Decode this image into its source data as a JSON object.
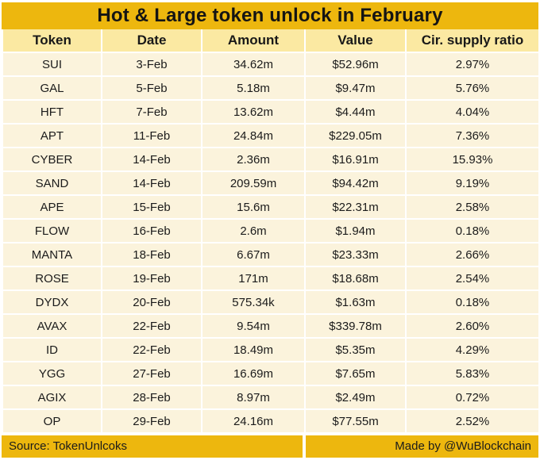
{
  "page": {
    "title": "Hot & Large token unlock in February"
  },
  "colors": {
    "gold": "#EDB70E",
    "header_yellow": "#FBE9A2",
    "row_cream": "#FBF3DC",
    "grid_white": "#FFFFFF",
    "text_dark": "#1B1B1B"
  },
  "footer": {
    "source": "Source: TokenUnlcoks",
    "credit": "Made by @WuBlockchain"
  },
  "chart_data": {
    "type": "table",
    "title": "Hot & Large token unlock in February",
    "columns": [
      "Token",
      "Date",
      "Amount",
      "Value",
      "Cir. supply ratio"
    ],
    "rows": [
      [
        "SUI",
        "3-Feb",
        "34.62m",
        "$52.96m",
        "2.97%"
      ],
      [
        "GAL",
        "5-Feb",
        "5.18m",
        "$9.47m",
        "5.76%"
      ],
      [
        "HFT",
        "7-Feb",
        "13.62m",
        "$4.44m",
        "4.04%"
      ],
      [
        "APT",
        "11-Feb",
        "24.84m",
        "$229.05m",
        "7.36%"
      ],
      [
        "CYBER",
        "14-Feb",
        "2.36m",
        "$16.91m",
        "15.93%"
      ],
      [
        "SAND",
        "14-Feb",
        "209.59m",
        "$94.42m",
        "9.19%"
      ],
      [
        "APE",
        "15-Feb",
        "15.6m",
        "$22.31m",
        "2.58%"
      ],
      [
        "FLOW",
        "16-Feb",
        "2.6m",
        "$1.94m",
        "0.18%"
      ],
      [
        "MANTA",
        "18-Feb",
        "6.67m",
        "$23.33m",
        "2.66%"
      ],
      [
        "ROSE",
        "19-Feb",
        "171m",
        "$18.68m",
        "2.54%"
      ],
      [
        "DYDX",
        "20-Feb",
        "575.34k",
        "$1.63m",
        "0.18%"
      ],
      [
        "AVAX",
        "22-Feb",
        "9.54m",
        "$339.78m",
        "2.60%"
      ],
      [
        "ID",
        "22-Feb",
        "18.49m",
        "$5.35m",
        "4.29%"
      ],
      [
        "YGG",
        "27-Feb",
        "16.69m",
        "$7.65m",
        "5.83%"
      ],
      [
        "AGIX",
        "28-Feb",
        "8.97m",
        "$2.49m",
        "0.72%"
      ],
      [
        "OP",
        "29-Feb",
        "24.16m",
        "$77.55m",
        "2.52%"
      ]
    ]
  }
}
